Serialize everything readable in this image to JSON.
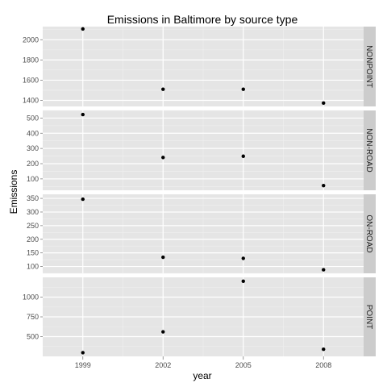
{
  "chart_data": {
    "type": "scatter",
    "title": "Emissions in Baltimore by source type",
    "xlabel": "year",
    "ylabel": "Emissions",
    "x": [
      1999,
      2002,
      2005,
      2008
    ],
    "x_tick_labels": [
      "1999",
      "2002",
      "2005",
      "2008"
    ],
    "xlim": [
      1997.5,
      2009.5
    ],
    "grid": true,
    "facet_direction": "rows",
    "strip_position": "right",
    "colors": {
      "panel_background": "#e5e5e5",
      "grid_major": "#ffffff",
      "grid_minor": "#f0f0f0",
      "strip_background": "#cccccc",
      "point": "#000000"
    },
    "facets": [
      {
        "label": "NONPOINT",
        "values": [
          2107,
          1510,
          1510,
          1373
        ],
        "ylim": [
          1340,
          2130
        ],
        "yticks": [
          1400,
          1600,
          1800,
          2000
        ]
      },
      {
        "label": "NON-ROAD",
        "values": [
          523,
          241,
          249,
          56
        ],
        "ylim": [
          25,
          550
        ],
        "yticks": [
          100,
          200,
          300,
          400,
          500
        ]
      },
      {
        "label": "ON-ROAD",
        "values": [
          347,
          134,
          130,
          88
        ],
        "ylim": [
          75,
          365
        ],
        "yticks": [
          100,
          150,
          200,
          250,
          300,
          350
        ]
      },
      {
        "label": "POINT",
        "values": [
          297,
          561,
          1201,
          340
        ],
        "ylim": [
          250,
          1250
        ],
        "yticks": [
          500,
          750,
          1000
        ]
      }
    ]
  }
}
